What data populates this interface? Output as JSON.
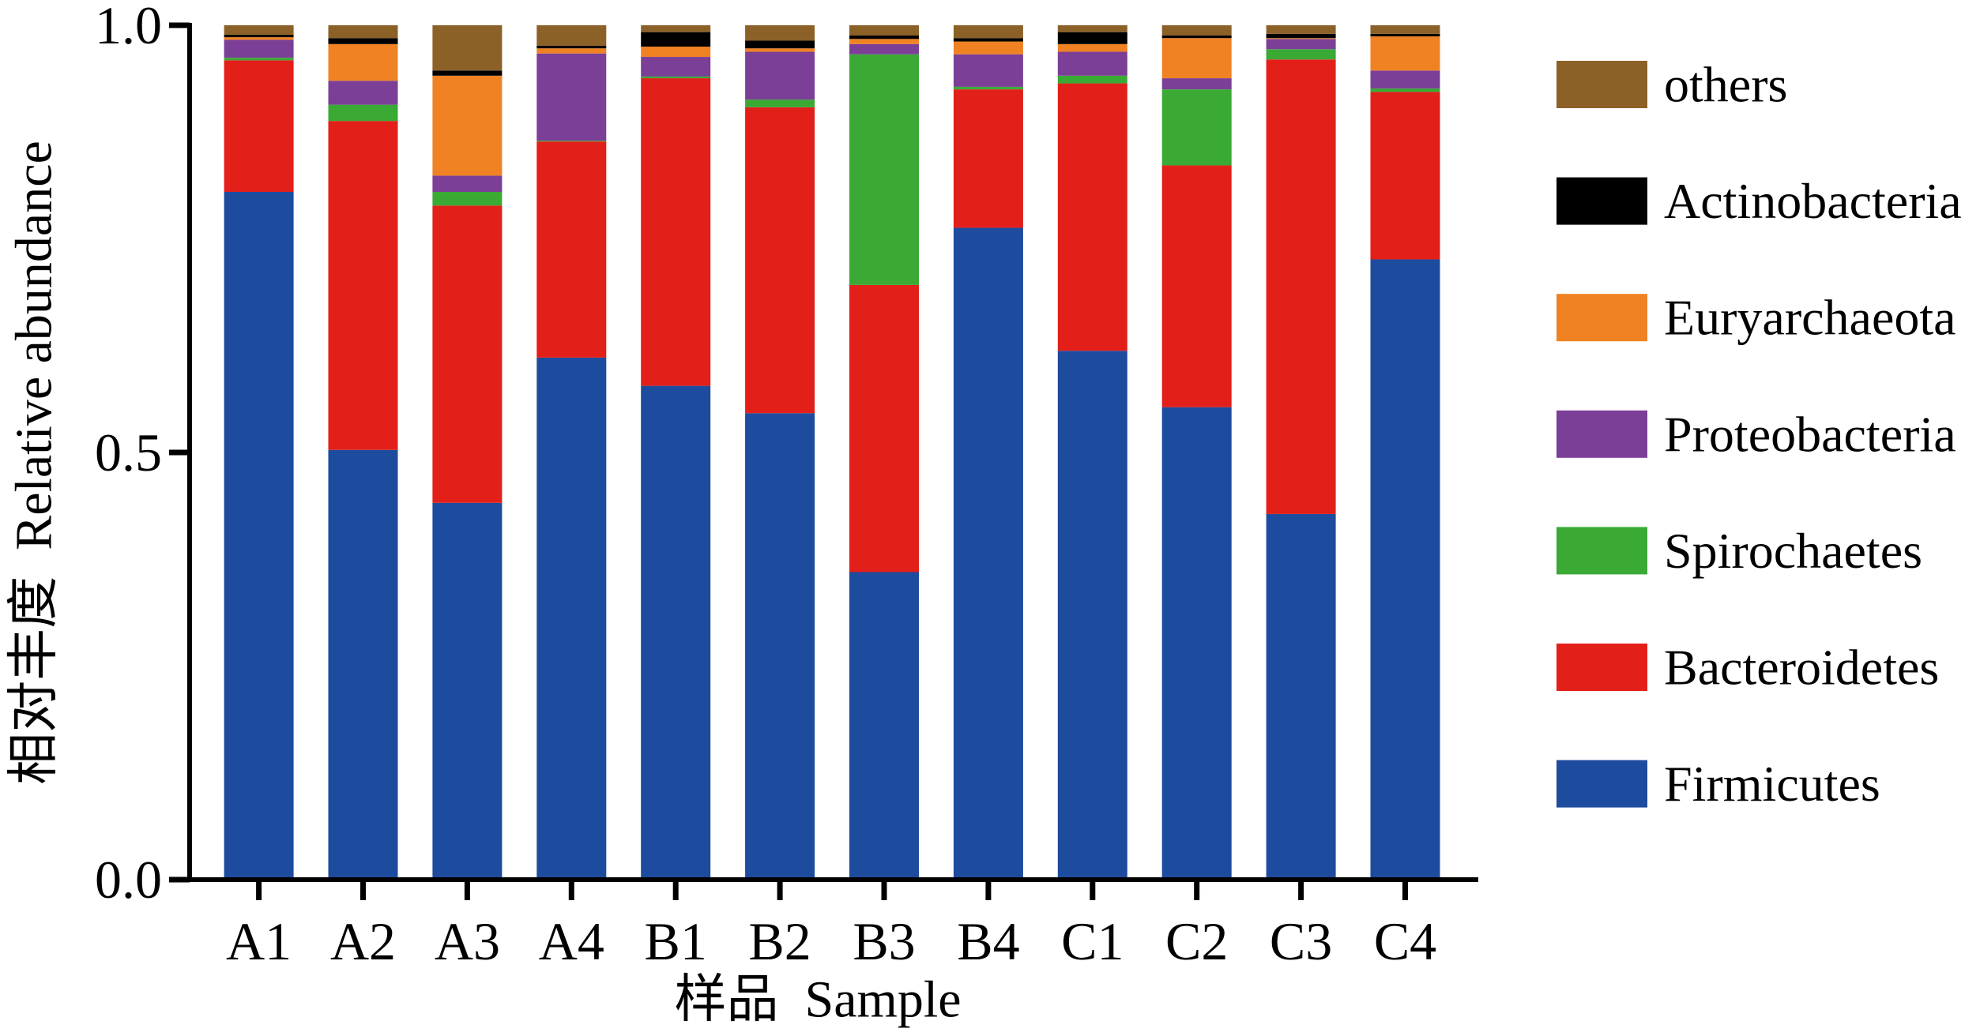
{
  "chart_data": {
    "type": "bar",
    "stacked": true,
    "categories": [
      "A1",
      "A2",
      "A3",
      "A4",
      "B1",
      "B2",
      "B3",
      "B4",
      "C1",
      "C2",
      "C3",
      "C4"
    ],
    "series": [
      {
        "name": "Firmicutes",
        "color": "#1D4B9E",
        "values": [
          0.805,
          0.503,
          0.441,
          0.611,
          0.578,
          0.546,
          0.36,
          0.763,
          0.619,
          0.553,
          0.428,
          0.726
        ]
      },
      {
        "name": "Bacteroidetes",
        "color": "#E31F1A",
        "values": [
          0.154,
          0.385,
          0.348,
          0.253,
          0.36,
          0.358,
          0.336,
          0.162,
          0.313,
          0.283,
          0.532,
          0.196
        ]
      },
      {
        "name": "Spirochaetes",
        "color": "#3AAA35",
        "values": [
          0.003,
          0.019,
          0.016,
          0.001,
          0.002,
          0.009,
          0.27,
          0.003,
          0.009,
          0.089,
          0.012,
          0.004
        ]
      },
      {
        "name": "Proteobacteria",
        "color": "#7B3F98",
        "values": [
          0.021,
          0.028,
          0.019,
          0.102,
          0.023,
          0.056,
          0.012,
          0.038,
          0.028,
          0.013,
          0.012,
          0.021
        ]
      },
      {
        "name": "Euryarchaeota",
        "color": "#F08223",
        "values": [
          0.003,
          0.043,
          0.117,
          0.006,
          0.012,
          0.004,
          0.006,
          0.015,
          0.009,
          0.047,
          0.001,
          0.04
        ]
      },
      {
        "name": "Actinobacteria",
        "color": "#000000",
        "values": [
          0.003,
          0.007,
          0.006,
          0.003,
          0.017,
          0.009,
          0.004,
          0.004,
          0.014,
          0.003,
          0.005,
          0.003
        ]
      },
      {
        "name": "others",
        "color": "#8C6128",
        "values": [
          0.011,
          0.015,
          0.053,
          0.024,
          0.008,
          0.018,
          0.012,
          0.015,
          0.008,
          0.012,
          0.01,
          0.01
        ]
      }
    ],
    "xlabel": "样品  Sample",
    "ylabel": "相对丰度  Relative abundance",
    "ylim": [
      0,
      1.0
    ],
    "ytick_labels": [
      "0.0",
      "0.5",
      "1.0"
    ],
    "grid": false,
    "legend_position": "right"
  }
}
